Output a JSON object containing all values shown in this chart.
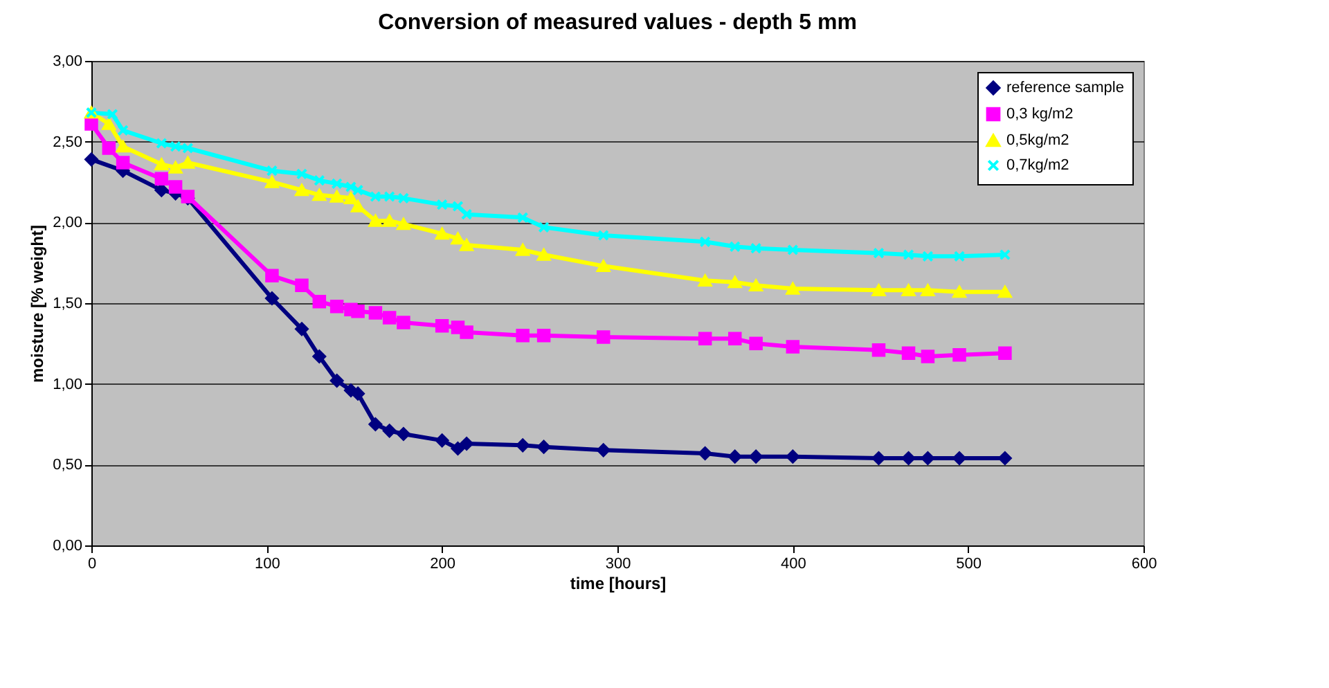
{
  "chart_data": {
    "type": "line",
    "title": "Conversion of measured values - depth 5 mm",
    "xlabel": "time  [hours]",
    "ylabel": "moisture [% weight]",
    "xlim": [
      0,
      600
    ],
    "xticks": [
      0,
      100,
      200,
      300,
      400,
      500,
      600
    ],
    "ylim": [
      0,
      3
    ],
    "yticks": [
      {
        "value": 0,
        "label": "0,00"
      },
      {
        "value": 0.5,
        "label": "0,50"
      },
      {
        "value": 1,
        "label": "1,00"
      },
      {
        "value": 1.5,
        "label": "1,50"
      },
      {
        "value": 2,
        "label": "2,00"
      },
      {
        "value": 2.5,
        "label": "2,50"
      },
      {
        "value": 3,
        "label": "3,00"
      }
    ],
    "grid": "y",
    "legend": "top right",
    "line_style": "solid",
    "series": [
      {
        "name": "reference sample",
        "color": "#000080",
        "marker": "diamond",
        "x": [
          0,
          18,
          40,
          48,
          55,
          103,
          120,
          130,
          140,
          148,
          152,
          162,
          170,
          178,
          200,
          209,
          214,
          246,
          258,
          292,
          350,
          367,
          379,
          400,
          449,
          466,
          477,
          495,
          521
        ],
        "values": [
          2.39,
          2.32,
          2.2,
          2.18,
          2.15,
          1.53,
          1.34,
          1.17,
          1.02,
          0.96,
          0.94,
          0.75,
          0.71,
          0.69,
          0.65,
          0.6,
          0.63,
          0.62,
          0.61,
          0.59,
          0.57,
          0.55,
          0.55,
          0.55,
          0.54,
          0.54,
          0.54,
          0.54,
          0.54
        ]
      },
      {
        "name": "0,3 kg/m2",
        "color": "#ff00ff",
        "marker": "square",
        "x": [
          0,
          10,
          18,
          40,
          48,
          55,
          103,
          120,
          130,
          140,
          148,
          152,
          162,
          170,
          178,
          200,
          209,
          214,
          246,
          258,
          292,
          350,
          367,
          379,
          400,
          449,
          466,
          477,
          495,
          521
        ],
        "values": [
          2.61,
          2.46,
          2.37,
          2.27,
          2.22,
          2.16,
          1.67,
          1.61,
          1.51,
          1.48,
          1.46,
          1.45,
          1.44,
          1.41,
          1.38,
          1.36,
          1.35,
          1.32,
          1.3,
          1.3,
          1.29,
          1.28,
          1.28,
          1.25,
          1.23,
          1.21,
          1.19,
          1.17,
          1.18,
          1.19
        ]
      },
      {
        "name": "0,5kg/m2",
        "color": "#ffff00",
        "marker": "triangle",
        "x": [
          0,
          10,
          18,
          40,
          48,
          55,
          103,
          120,
          130,
          140,
          148,
          152,
          162,
          170,
          178,
          200,
          209,
          214,
          246,
          258,
          292,
          350,
          367,
          379,
          400,
          449,
          466,
          477,
          495,
          521
        ],
        "values": [
          2.68,
          2.61,
          2.47,
          2.36,
          2.34,
          2.37,
          2.25,
          2.2,
          2.17,
          2.16,
          2.15,
          2.1,
          2.01,
          2.01,
          1.99,
          1.93,
          1.9,
          1.86,
          1.83,
          1.8,
          1.73,
          1.64,
          1.63,
          1.61,
          1.59,
          1.58,
          1.58,
          1.58,
          1.57,
          1.57
        ]
      },
      {
        "name": "0,7kg/m2",
        "color": "#00ffff",
        "marker": "cross",
        "x": [
          0,
          12,
          18,
          40,
          48,
          55,
          103,
          120,
          130,
          140,
          148,
          152,
          162,
          170,
          178,
          200,
          209,
          214,
          246,
          258,
          292,
          350,
          367,
          379,
          400,
          449,
          466,
          477,
          495,
          521
        ],
        "values": [
          2.68,
          2.67,
          2.57,
          2.49,
          2.47,
          2.46,
          2.32,
          2.3,
          2.26,
          2.24,
          2.22,
          2.2,
          2.16,
          2.16,
          2.15,
          2.11,
          2.1,
          2.05,
          2.03,
          1.97,
          1.92,
          1.88,
          1.85,
          1.84,
          1.83,
          1.81,
          1.8,
          1.79,
          1.79,
          1.8
        ]
      }
    ]
  }
}
